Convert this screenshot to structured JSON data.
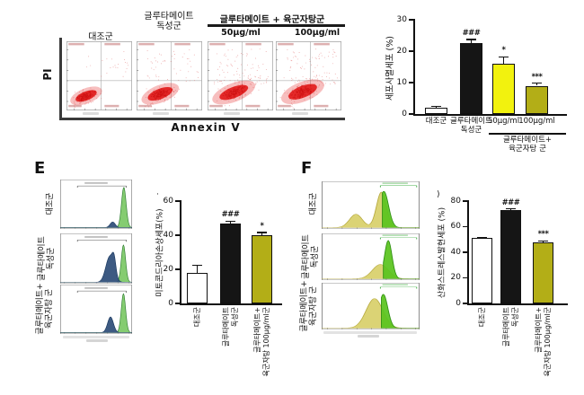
{
  "figure": {
    "panel_a": {
      "col_control": "대조군",
      "col_glutamate": "글루타메이트\n독성군",
      "combo_title": "글루타메이트 + 육군자탕군",
      "dose_50": "50μg/ml",
      "dose_100": "100μg/ml"
    },
    "panel_e_label": "E",
    "panel_f_label": "F",
    "stray_mark_e": "·",
    "stray_mark_f": ")"
  },
  "chart_data": [
    {
      "type": "scatter",
      "name": "flow-cytometry-annexin-pi",
      "xlabel": "Annexin V",
      "ylabel": "PI",
      "panels": [
        "대조군",
        "글루타메이트 독성군",
        "글루타메이트 + 육군자탕군 50μg/ml",
        "글루타메이트 + 육군자탕군 100μg/ml"
      ],
      "note": "red cell populations concentrated in lower-left quadrant, spreading toward upper/right with glutamate"
    },
    {
      "type": "bar",
      "id": "apoptosis",
      "ylabel": "세포사멸세포 (%)",
      "ylim": [
        0,
        30
      ],
      "yticks": [
        0,
        10,
        20,
        30
      ],
      "categories": [
        "대조군",
        "글루타메이트\n독성군",
        "50μg/ml",
        "100μg/ml"
      ],
      "values": [
        2,
        22.5,
        16,
        9
      ],
      "errors": [
        0.4,
        1.2,
        2.2,
        0.8
      ],
      "significance": [
        "",
        "###",
        "*",
        "***"
      ],
      "bar_colors": [
        "#ffffff",
        "#151515",
        "#f2f20e",
        "#b3ae17"
      ],
      "group_bracket": {
        "label_lines": [
          "글루타메이트+",
          "육군자탕 군"
        ]
      }
    },
    {
      "type": "histogram",
      "panel": "E",
      "rows": [
        "대조군",
        "글루타메이트\n독성군",
        "글루타메이트+\n육군자탕 군"
      ],
      "series_colors": {
        "green": "#7cc866",
        "blue": "#2e4d78"
      }
    },
    {
      "type": "bar",
      "id": "mito",
      "ylabel": "미토콘드리아손상세포(%)",
      "ylim": [
        0,
        60
      ],
      "yticks": [
        0,
        20,
        40,
        60
      ],
      "categories": [
        "대조군",
        "글루타메이트\n독성군",
        "글루타메이트+\n육군자탕 100μg/ml군"
      ],
      "values": [
        18,
        47,
        40
      ],
      "errors": [
        4.5,
        1.2,
        1.6
      ],
      "significance": [
        "",
        "###",
        "*"
      ],
      "bar_colors": [
        "#ffffff",
        "#151515",
        "#b3ae17"
      ]
    },
    {
      "type": "histogram",
      "panel": "F",
      "rows": [
        "대조군",
        "글루타메이트\n독성군",
        "글루타메이트+\n육군자탕 군"
      ],
      "series_colors": {
        "khaki": "#d8d06a",
        "green": "#5ac41e"
      }
    },
    {
      "type": "bar",
      "id": "ros",
      "ylabel": "산화스트레스발현세포 (%)",
      "ylim": [
        0,
        80
      ],
      "yticks": [
        0,
        20,
        40,
        60,
        80
      ],
      "categories": [
        "대조군",
        "글루타메이트\n독성군",
        "글루타메이트+\n육군자탕 100μg/ml군"
      ],
      "values": [
        51,
        73,
        48
      ],
      "errors": [
        0.6,
        1.0,
        0.8
      ],
      "significance": [
        "",
        "###",
        "***"
      ],
      "bar_colors": [
        "#ffffff",
        "#151515",
        "#b3ae17"
      ]
    }
  ]
}
